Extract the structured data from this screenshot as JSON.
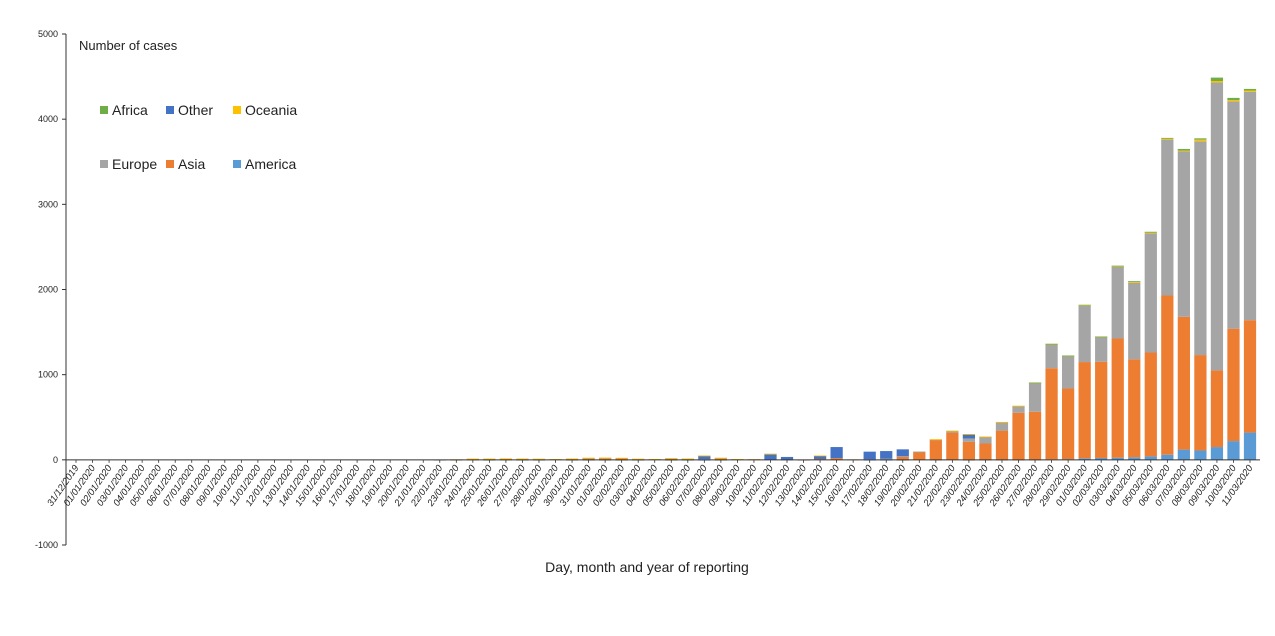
{
  "chart_data": {
    "type": "bar",
    "stacked": true,
    "ylabel": "Number of cases",
    "xlabel": "Day, month and year of reporting",
    "ylim": [
      -1000,
      5000
    ],
    "yticks": [
      -1000,
      0,
      1000,
      2000,
      3000,
      4000,
      5000
    ],
    "grid": false,
    "legend_position": "top-left",
    "categories": [
      "31/12/2019",
      "01/01/2020",
      "02/01/2020",
      "03/01/2020",
      "04/01/2020",
      "05/01/2020",
      "06/01/2020",
      "07/01/2020",
      "08/01/2020",
      "09/01/2020",
      "10/01/2020",
      "11/01/2020",
      "12/01/2020",
      "13/01/2020",
      "14/01/2020",
      "15/01/2020",
      "16/01/2020",
      "17/01/2020",
      "18/01/2020",
      "19/01/2020",
      "20/01/2020",
      "21/01/2020",
      "22/01/2020",
      "23/01/2020",
      "24/01/2020",
      "25/01/2020",
      "26/01/2020",
      "27/01/2020",
      "28/01/2020",
      "29/01/2020",
      "30/01/2020",
      "31/01/2020",
      "01/02/2020",
      "02/02/2020",
      "03/02/2020",
      "04/02/2020",
      "05/02/2020",
      "06/02/2020",
      "07/02/2020",
      "08/02/2020",
      "09/02/2020",
      "10/02/2020",
      "11/02/2020",
      "12/02/2020",
      "13/02/2020",
      "14/02/2020",
      "15/02/2020",
      "16/02/2020",
      "17/02/2020",
      "18/02/2020",
      "19/02/2020",
      "20/02/2020",
      "21/02/2020",
      "22/02/2020",
      "23/02/2020",
      "24/02/2020",
      "25/02/2020",
      "26/02/2020",
      "27/02/2020",
      "28/02/2020",
      "29/02/2020",
      "01/03/2020",
      "02/03/2020",
      "03/03/2020",
      "04/03/2020",
      "05/03/2020",
      "06/03/2020",
      "07/03/2020",
      "08/03/2020",
      "09/03/2020",
      "10/03/2020",
      "11/03/2020"
    ],
    "series": [
      {
        "name": "America",
        "color": "#5b9bd5",
        "values": [
          0,
          0,
          0,
          0,
          0,
          0,
          0,
          0,
          0,
          0,
          0,
          0,
          0,
          0,
          0,
          0,
          0,
          0,
          0,
          0,
          0,
          0,
          1,
          1,
          2,
          1,
          2,
          1,
          1,
          0,
          1,
          1,
          1,
          1,
          1,
          0,
          1,
          1,
          1,
          1,
          0,
          0,
          0,
          0,
          1,
          0,
          0,
          0,
          1,
          1,
          1,
          0,
          2,
          0,
          1,
          2,
          3,
          3,
          4,
          6,
          8,
          18,
          22,
          25,
          30,
          40,
          60,
          120,
          110,
          150,
          220,
          320
        ]
      },
      {
        "name": "Asia",
        "color": "#ed7d31",
        "values": [
          0,
          0,
          0,
          0,
          0,
          0,
          0,
          0,
          0,
          0,
          0,
          0,
          0,
          0,
          0,
          0,
          0,
          0,
          0,
          0,
          0,
          0,
          2,
          3,
          8,
          10,
          12,
          12,
          10,
          8,
          12,
          18,
          20,
          20,
          10,
          8,
          15,
          10,
          6,
          20,
          8,
          6,
          0,
          4,
          2,
          10,
          20,
          5,
          5,
          10,
          40,
          95,
          230,
          320,
          210,
          190,
          340,
          550,
          560,
          1070,
          830,
          1130,
          1130,
          1400,
          1150,
          1220,
          1870,
          1560,
          1120,
          900,
          1320,
          1320
        ]
      },
      {
        "name": "Europe",
        "color": "#a5a5a5",
        "values": [
          0,
          0,
          0,
          0,
          0,
          0,
          0,
          0,
          0,
          0,
          0,
          0,
          0,
          0,
          0,
          0,
          0,
          0,
          0,
          0,
          0,
          0,
          0,
          0,
          0,
          0,
          0,
          0,
          0,
          0,
          0,
          2,
          2,
          0,
          0,
          0,
          2,
          3,
          2,
          2,
          0,
          0,
          0,
          0,
          0,
          0,
          0,
          0,
          0,
          2,
          2,
          2,
          8,
          20,
          40,
          80,
          100,
          80,
          340,
          280,
          380,
          660,
          290,
          840,
          900,
          1400,
          1830,
          1940,
          2510,
          3380,
          2670,
          2680
        ]
      },
      {
        "name": "Other",
        "color": "#4472c4",
        "values": [
          0,
          0,
          0,
          0,
          0,
          0,
          0,
          0,
          0,
          0,
          0,
          0,
          0,
          0,
          0,
          0,
          0,
          0,
          0,
          0,
          0,
          0,
          0,
          0,
          0,
          0,
          0,
          0,
          0,
          0,
          0,
          0,
          0,
          0,
          0,
          0,
          0,
          0,
          40,
          0,
          0,
          0,
          70,
          30,
          0,
          40,
          130,
          0,
          90,
          90,
          80,
          0,
          0,
          0,
          50,
          0,
          0,
          0,
          0,
          0,
          0,
          0,
          0,
          0,
          0,
          0,
          0,
          0,
          0,
          0,
          0,
          0
        ]
      },
      {
        "name": "Oceania",
        "color": "#ffc000",
        "values": [
          0,
          0,
          0,
          0,
          0,
          0,
          0,
          0,
          0,
          0,
          0,
          0,
          0,
          0,
          0,
          0,
          0,
          0,
          0,
          0,
          0,
          0,
          0,
          2,
          5,
          4,
          3,
          2,
          2,
          2,
          3,
          4,
          3,
          3,
          2,
          2,
          2,
          2,
          1,
          1,
          2,
          1,
          1,
          0,
          0,
          1,
          0,
          0,
          0,
          0,
          0,
          0,
          2,
          3,
          2,
          2,
          2,
          2,
          3,
          5,
          5,
          10,
          4,
          10,
          8,
          12,
          12,
          10,
          20,
          18,
          15,
          15
        ]
      },
      {
        "name": "Africa",
        "color": "#70ad47",
        "values": [
          0,
          0,
          0,
          0,
          0,
          0,
          0,
          0,
          0,
          0,
          0,
          0,
          0,
          0,
          0,
          0,
          0,
          0,
          0,
          0,
          0,
          0,
          0,
          0,
          0,
          0,
          0,
          0,
          0,
          0,
          0,
          0,
          0,
          0,
          0,
          0,
          0,
          0,
          0,
          0,
          0,
          0,
          0,
          0,
          0,
          0,
          0,
          0,
          0,
          0,
          0,
          0,
          0,
          0,
          0,
          0,
          0,
          0,
          1,
          2,
          2,
          3,
          2,
          5,
          10,
          6,
          8,
          20,
          15,
          40,
          25,
          20
        ]
      }
    ],
    "legend_rows": [
      [
        "Africa",
        "Other",
        "Oceania"
      ],
      [
        "Europe",
        "Asia",
        "America"
      ]
    ]
  }
}
